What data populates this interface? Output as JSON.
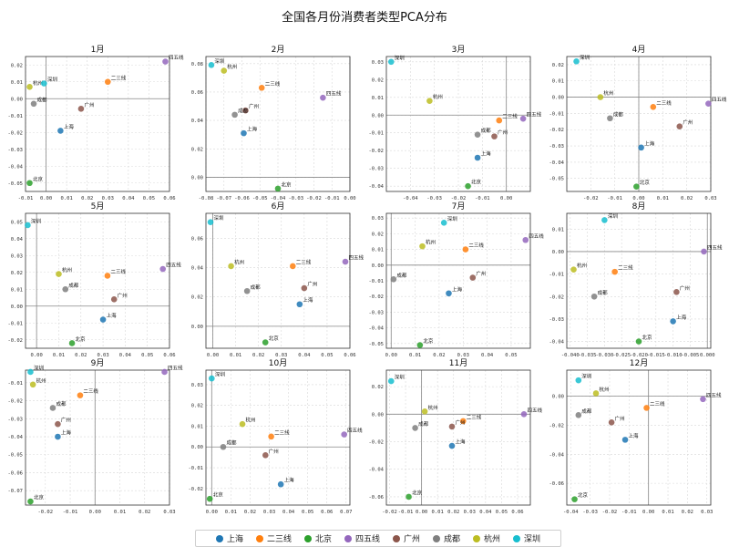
{
  "figure": {
    "title": "全国各月份消费者类型PCA分布"
  },
  "legend": [
    {
      "name": "上海",
      "color": "#1f77b4"
    },
    {
      "name": "二三线",
      "color": "#ff7f0e"
    },
    {
      "name": "北京",
      "color": "#2ca02c"
    },
    {
      "name": "四五线",
      "color": "#9467bd"
    },
    {
      "name": "广州",
      "color": "#8c564b"
    },
    {
      "name": "成都",
      "color": "#7f7f7f"
    },
    {
      "name": "杭州",
      "color": "#bcbd22"
    },
    {
      "name": "深圳",
      "color": "#17becf"
    }
  ],
  "chart_data": [
    {
      "type": "scatter",
      "title": "1月",
      "xlim": [
        -0.01,
        0.06
      ],
      "ylim": [
        -0.055,
        0.025
      ],
      "xticks": [
        "-0.01",
        "0.00",
        "0.01",
        "0.02",
        "0.03",
        "0.04",
        "0.05",
        "0.06"
      ],
      "yticks": [
        "-0.05",
        "-0.04",
        "-0.03",
        "-0.02",
        "-0.01",
        "0.00",
        "0.01",
        "0.02"
      ],
      "points": [
        {
          "label": "上海",
          "x": 0.007,
          "y": -0.019
        },
        {
          "label": "二三线",
          "x": 0.03,
          "y": 0.01
        },
        {
          "label": "北京",
          "x": -0.008,
          "y": -0.05
        },
        {
          "label": "四五线",
          "x": 0.058,
          "y": 0.022
        },
        {
          "label": "广州",
          "x": 0.017,
          "y": -0.006
        },
        {
          "label": "成都",
          "x": -0.006,
          "y": -0.003
        },
        {
          "label": "杭州",
          "x": -0.008,
          "y": 0.007
        },
        {
          "label": "深圳",
          "x": -0.001,
          "y": 0.009
        }
      ]
    },
    {
      "type": "scatter",
      "title": "2月",
      "xlim": [
        -0.08,
        0.0
      ],
      "ylim": [
        -0.01,
        0.085
      ],
      "xticks": [
        "-0.08",
        "-0.07",
        "-0.06",
        "-0.05",
        "-0.04",
        "-0.03",
        "-0.02",
        "-0.01",
        "0.00"
      ],
      "yticks": [
        "0.00",
        "0.02",
        "0.04",
        "0.06",
        "0.08"
      ],
      "points": [
        {
          "label": "上海",
          "x": -0.059,
          "y": 0.031
        },
        {
          "label": "二三线",
          "x": -0.049,
          "y": 0.063
        },
        {
          "label": "北京",
          "x": -0.04,
          "y": -0.008
        },
        {
          "label": "四五线",
          "x": -0.015,
          "y": 0.056
        },
        {
          "label": "广州",
          "x": -0.058,
          "y": 0.047
        },
        {
          "label": "成都",
          "x": -0.064,
          "y": 0.044
        },
        {
          "label": "杭州",
          "x": -0.07,
          "y": 0.075
        },
        {
          "label": "深圳",
          "x": -0.077,
          "y": 0.079
        }
      ]
    },
    {
      "type": "scatter",
      "title": "3月",
      "xlim": [
        -0.05,
        0.01
      ],
      "ylim": [
        -0.043,
        0.033
      ],
      "xticks": [
        "-0.04",
        "-0.03",
        "-0.02",
        "-0.01",
        "0.00"
      ],
      "yticks": [
        "-0.04",
        "-0.03",
        "-0.02",
        "-0.01",
        "0.00",
        "0.01",
        "0.02",
        "0.03"
      ],
      "points": [
        {
          "label": "上海",
          "x": -0.012,
          "y": -0.024
        },
        {
          "label": "二三线",
          "x": -0.003,
          "y": -0.003
        },
        {
          "label": "北京",
          "x": -0.016,
          "y": -0.04
        },
        {
          "label": "四五线",
          "x": 0.007,
          "y": -0.002
        },
        {
          "label": "广州",
          "x": -0.005,
          "y": -0.012
        },
        {
          "label": "成都",
          "x": -0.012,
          "y": -0.011
        },
        {
          "label": "杭州",
          "x": -0.032,
          "y": 0.008
        },
        {
          "label": "深圳",
          "x": -0.048,
          "y": 0.03
        }
      ]
    },
    {
      "type": "scatter",
      "title": "4月",
      "xlim": [
        -0.03,
        0.03
      ],
      "ylim": [
        -0.058,
        0.025
      ],
      "xticks": [
        "-0.02",
        "-0.01",
        "0.00",
        "0.01",
        "0.02",
        "0.03"
      ],
      "yticks": [
        "-0.05",
        "-0.04",
        "-0.03",
        "-0.02",
        "-0.01",
        "0.00",
        "0.01",
        "0.02"
      ],
      "points": [
        {
          "label": "上海",
          "x": 0.001,
          "y": -0.031
        },
        {
          "label": "二三线",
          "x": 0.006,
          "y": -0.006
        },
        {
          "label": "北京",
          "x": -0.001,
          "y": -0.055
        },
        {
          "label": "四五线",
          "x": 0.029,
          "y": -0.004
        },
        {
          "label": "广州",
          "x": 0.017,
          "y": -0.018
        },
        {
          "label": "成都",
          "x": -0.012,
          "y": -0.013
        },
        {
          "label": "杭州",
          "x": -0.016,
          "y": 0.0
        },
        {
          "label": "深圳",
          "x": -0.026,
          "y": 0.022
        }
      ]
    },
    {
      "type": "scatter",
      "title": "5月",
      "xlim": [
        -0.005,
        0.06
      ],
      "ylim": [
        -0.025,
        0.055
      ],
      "xticks": [
        "0.00",
        "0.01",
        "0.02",
        "0.03",
        "0.04",
        "0.05",
        "0.06"
      ],
      "yticks": [
        "-0.02",
        "-0.01",
        "0.00",
        "0.01",
        "0.02",
        "0.03",
        "0.04",
        "0.05"
      ],
      "points": [
        {
          "label": "上海",
          "x": 0.03,
          "y": -0.008
        },
        {
          "label": "二三线",
          "x": 0.032,
          "y": 0.018
        },
        {
          "label": "北京",
          "x": 0.016,
          "y": -0.022
        },
        {
          "label": "四五线",
          "x": 0.057,
          "y": 0.022
        },
        {
          "label": "广州",
          "x": 0.035,
          "y": 0.004
        },
        {
          "label": "成都",
          "x": 0.013,
          "y": 0.01
        },
        {
          "label": "杭州",
          "x": 0.01,
          "y": 0.019
        },
        {
          "label": "深圳",
          "x": -0.004,
          "y": 0.048
        }
      ]
    },
    {
      "type": "scatter",
      "title": "6月",
      "xlim": [
        -0.003,
        0.06
      ],
      "ylim": [
        -0.015,
        0.077
      ],
      "xticks": [
        "0.00",
        "0.01",
        "0.02",
        "0.03",
        "0.04",
        "0.05",
        "0.06"
      ],
      "yticks": [
        "0.00",
        "0.02",
        "0.04",
        "0.06"
      ],
      "points": [
        {
          "label": "上海",
          "x": 0.038,
          "y": 0.015
        },
        {
          "label": "二三线",
          "x": 0.035,
          "y": 0.041
        },
        {
          "label": "北京",
          "x": 0.023,
          "y": -0.011
        },
        {
          "label": "四五线",
          "x": 0.058,
          "y": 0.044
        },
        {
          "label": "广州",
          "x": 0.04,
          "y": 0.026
        },
        {
          "label": "成都",
          "x": 0.015,
          "y": 0.024
        },
        {
          "label": "杭州",
          "x": 0.008,
          "y": 0.041
        },
        {
          "label": "深圳",
          "x": -0.001,
          "y": 0.071
        }
      ]
    },
    {
      "type": "scatter",
      "title": "7月",
      "xlim": [
        -0.002,
        0.058
      ],
      "ylim": [
        -0.053,
        0.033
      ],
      "xticks": [
        "0.00",
        "0.01",
        "0.02",
        "0.03",
        "0.04",
        "0.05"
      ],
      "yticks": [
        "-0.05",
        "-0.04",
        "-0.03",
        "-0.02",
        "-0.01",
        "0.00",
        "0.01",
        "0.02",
        "0.03"
      ],
      "points": [
        {
          "label": "上海",
          "x": 0.024,
          "y": -0.018
        },
        {
          "label": "二三线",
          "x": 0.031,
          "y": 0.01
        },
        {
          "label": "北京",
          "x": 0.012,
          "y": -0.051
        },
        {
          "label": "四五线",
          "x": 0.056,
          "y": 0.016
        },
        {
          "label": "广州",
          "x": 0.034,
          "y": -0.008
        },
        {
          "label": "成都",
          "x": 0.001,
          "y": -0.009
        },
        {
          "label": "杭州",
          "x": 0.013,
          "y": 0.012
        },
        {
          "label": "深圳",
          "x": 0.022,
          "y": 0.027
        }
      ]
    },
    {
      "type": "scatter",
      "title": "8月",
      "xlim": [
        -0.041,
        0.001
      ],
      "ylim": [
        -0.043,
        0.017
      ],
      "xticks": [
        "-0.040",
        "-0.035",
        "-0.030",
        "-0.025",
        "-0.020",
        "-0.015",
        "-0.010",
        "-0.005",
        "0.000"
      ],
      "yticks": [
        "-0.04",
        "-0.03",
        "-0.02",
        "-0.01",
        "0.00",
        "0.01"
      ],
      "points": [
        {
          "label": "上海",
          "x": -0.01,
          "y": -0.031
        },
        {
          "label": "二三线",
          "x": -0.027,
          "y": -0.009
        },
        {
          "label": "北京",
          "x": -0.02,
          "y": -0.04
        },
        {
          "label": "四五线",
          "x": -0.001,
          "y": 0.0
        },
        {
          "label": "广州",
          "x": -0.009,
          "y": -0.018
        },
        {
          "label": "成都",
          "x": -0.033,
          "y": -0.02
        },
        {
          "label": "杭州",
          "x": -0.039,
          "y": -0.008
        },
        {
          "label": "深圳",
          "x": -0.03,
          "y": 0.014
        }
      ]
    },
    {
      "type": "scatter",
      "title": "9月",
      "xlim": [
        -0.028,
        0.03
      ],
      "ylim": [
        -0.078,
        -0.003
      ],
      "xticks": [
        "-0.02",
        "-0.01",
        "0.00",
        "0.01",
        "0.02",
        "0.03"
      ],
      "yticks": [
        "-0.07",
        "-0.06",
        "-0.05",
        "-0.04",
        "-0.03",
        "-0.02",
        "-0.01"
      ],
      "points": [
        {
          "label": "上海",
          "x": -0.015,
          "y": -0.04
        },
        {
          "label": "二三线",
          "x": -0.006,
          "y": -0.017
        },
        {
          "label": "北京",
          "x": -0.026,
          "y": -0.076
        },
        {
          "label": "四五线",
          "x": 0.028,
          "y": -0.004
        },
        {
          "label": "广州",
          "x": -0.015,
          "y": -0.033
        },
        {
          "label": "成都",
          "x": -0.017,
          "y": -0.024
        },
        {
          "label": "杭州",
          "x": -0.025,
          "y": -0.011
        },
        {
          "label": "深圳",
          "x": -0.026,
          "y": -0.004
        }
      ]
    },
    {
      "type": "scatter",
      "title": "10月",
      "xlim": [
        -0.003,
        0.072
      ],
      "ylim": [
        -0.028,
        0.037
      ],
      "xticks": [
        "0.00",
        "0.01",
        "0.02",
        "0.03",
        "0.04",
        "0.05",
        "0.06",
        "0.07"
      ],
      "yticks": [
        "-0.02",
        "-0.01",
        "0.00",
        "0.01",
        "0.02",
        "0.03"
      ],
      "points": [
        {
          "label": "上海",
          "x": 0.036,
          "y": -0.018
        },
        {
          "label": "二三线",
          "x": 0.031,
          "y": 0.005
        },
        {
          "label": "北京",
          "x": -0.001,
          "y": -0.025
        },
        {
          "label": "四五线",
          "x": 0.069,
          "y": 0.006
        },
        {
          "label": "广州",
          "x": 0.028,
          "y": -0.004
        },
        {
          "label": "成都",
          "x": 0.006,
          "y": 0.0
        },
        {
          "label": "杭州",
          "x": 0.016,
          "y": 0.011
        },
        {
          "label": "深圳",
          "x": 0.0,
          "y": 0.033
        }
      ]
    },
    {
      "type": "scatter",
      "title": "11月",
      "xlim": [
        -0.022,
        0.068
      ],
      "ylim": [
        -0.066,
        0.032
      ],
      "xticks": [
        "-0.02",
        "-0.01",
        "0.00",
        "0.01",
        "0.02",
        "0.03",
        "0.04",
        "0.05",
        "0.06"
      ],
      "yticks": [
        "-0.06",
        "-0.04",
        "-0.02",
        "0.00",
        "0.02"
      ],
      "points": [
        {
          "label": "上海",
          "x": 0.019,
          "y": -0.023
        },
        {
          "label": "二三线",
          "x": 0.026,
          "y": -0.005
        },
        {
          "label": "北京",
          "x": -0.008,
          "y": -0.06
        },
        {
          "label": "四五线",
          "x": 0.064,
          "y": 0.0
        },
        {
          "label": "广州",
          "x": 0.019,
          "y": -0.009
        },
        {
          "label": "成都",
          "x": -0.004,
          "y": -0.01
        },
        {
          "label": "杭州",
          "x": 0.002,
          "y": 0.002
        },
        {
          "label": "深圳",
          "x": -0.019,
          "y": 0.024
        }
      ]
    },
    {
      "type": "scatter",
      "title": "12月",
      "xlim": [
        -0.042,
        0.032
      ],
      "ylim": [
        -0.075,
        0.018
      ],
      "xticks": [
        "-0.04",
        "-0.03",
        "-0.02",
        "-0.01",
        "0.00",
        "0.01",
        "0.02",
        "0.03"
      ],
      "yticks": [
        "-0.06",
        "-0.04",
        "-0.02",
        "0.00"
      ],
      "points": [
        {
          "label": "上海",
          "x": -0.012,
          "y": -0.03
        },
        {
          "label": "二三线",
          "x": -0.001,
          "y": -0.008
        },
        {
          "label": "北京",
          "x": -0.038,
          "y": -0.071
        },
        {
          "label": "四五线",
          "x": 0.028,
          "y": -0.002
        },
        {
          "label": "广州",
          "x": -0.019,
          "y": -0.018
        },
        {
          "label": "成都",
          "x": -0.036,
          "y": -0.013
        },
        {
          "label": "杭州",
          "x": -0.027,
          "y": 0.002
        },
        {
          "label": "深圳",
          "x": -0.036,
          "y": 0.011
        }
      ]
    }
  ]
}
